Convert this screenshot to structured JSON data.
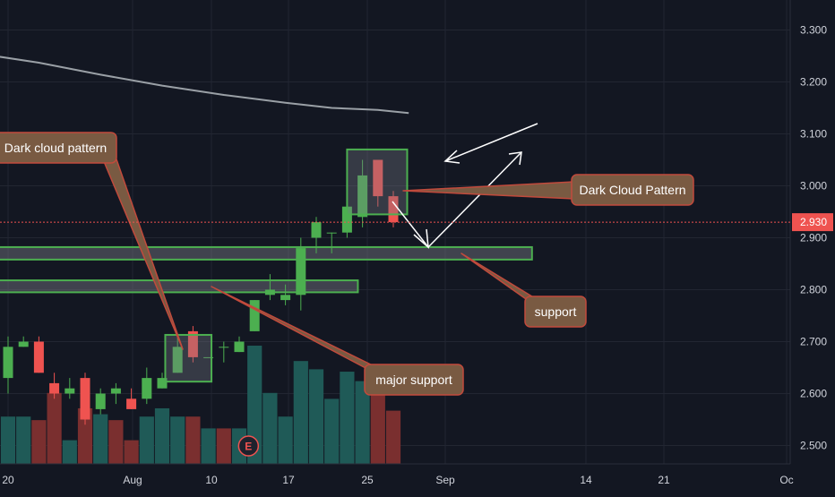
{
  "chart_data": {
    "type": "candlestick",
    "title": "",
    "xlabel": "",
    "ylabel": "",
    "ylim": [
      2.47,
      3.34
    ],
    "y_ticks": [
      "2.500",
      "2.600",
      "2.700",
      "2.800",
      "2.900",
      "3.000",
      "3.100",
      "3.200",
      "3.300"
    ],
    "x_ticks": [
      "20",
      "Aug",
      "10",
      "17",
      "25",
      "Sep",
      "14",
      "21",
      "Oc"
    ],
    "grid": true,
    "last_price": "2.930",
    "candles": [
      {
        "o": 2.63,
        "h": 2.71,
        "l": 2.6,
        "c": 2.69
      },
      {
        "o": 2.69,
        "h": 2.71,
        "l": 2.69,
        "c": 2.7
      },
      {
        "o": 2.7,
        "h": 2.71,
        "l": 2.64,
        "c": 2.64
      },
      {
        "o": 2.62,
        "h": 2.64,
        "l": 2.59,
        "c": 2.6
      },
      {
        "o": 2.6,
        "h": 2.63,
        "l": 2.59,
        "c": 2.61
      },
      {
        "o": 2.63,
        "h": 2.64,
        "l": 2.54,
        "c": 2.55
      },
      {
        "o": 2.57,
        "h": 2.61,
        "l": 2.56,
        "c": 2.6
      },
      {
        "o": 2.6,
        "h": 2.62,
        "l": 2.58,
        "c": 2.61
      },
      {
        "o": 2.59,
        "h": 2.61,
        "l": 2.57,
        "c": 2.57
      },
      {
        "o": 2.59,
        "h": 2.65,
        "l": 2.58,
        "c": 2.63
      },
      {
        "o": 2.61,
        "h": 2.64,
        "l": 2.61,
        "c": 2.63
      },
      {
        "o": 2.64,
        "h": 2.71,
        "l": 2.64,
        "c": 2.69
      },
      {
        "o": 2.72,
        "h": 2.73,
        "l": 2.66,
        "c": 2.67
      },
      {
        "o": 2.67,
        "h": 2.67,
        "l": 2.67,
        "c": 2.67
      },
      {
        "o": 2.69,
        "h": 2.7,
        "l": 2.66,
        "c": 2.69
      },
      {
        "o": 2.68,
        "h": 2.71,
        "l": 2.68,
        "c": 2.7
      },
      {
        "o": 2.72,
        "h": 2.78,
        "l": 2.72,
        "c": 2.78
      },
      {
        "o": 2.79,
        "h": 2.83,
        "l": 2.78,
        "c": 2.8
      },
      {
        "o": 2.78,
        "h": 2.81,
        "l": 2.77,
        "c": 2.79
      },
      {
        "o": 2.79,
        "h": 2.9,
        "l": 2.76,
        "c": 2.88
      },
      {
        "o": 2.9,
        "h": 2.94,
        "l": 2.87,
        "c": 2.93
      },
      {
        "o": 2.91,
        "h": 2.91,
        "l": 2.87,
        "c": 2.91
      },
      {
        "o": 2.91,
        "h": 2.96,
        "l": 2.9,
        "c": 2.96
      },
      {
        "o": 2.94,
        "h": 3.05,
        "l": 2.92,
        "c": 3.02
      },
      {
        "o": 3.05,
        "h": 3.05,
        "l": 2.96,
        "c": 2.98
      },
      {
        "o": 2.98,
        "h": 2.99,
        "l": 2.92,
        "c": 2.93
      }
    ],
    "volume": [
      {
        "v": 0.4,
        "up": true
      },
      {
        "v": 0.4,
        "up": true
      },
      {
        "v": 0.37,
        "up": false
      },
      {
        "v": 0.6,
        "up": false
      },
      {
        "v": 0.2,
        "up": true
      },
      {
        "v": 0.47,
        "up": false
      },
      {
        "v": 0.42,
        "up": true
      },
      {
        "v": 0.37,
        "up": false
      },
      {
        "v": 0.2,
        "up": false
      },
      {
        "v": 0.4,
        "up": true
      },
      {
        "v": 0.47,
        "up": true
      },
      {
        "v": 0.4,
        "up": true
      },
      {
        "v": 0.4,
        "up": false
      },
      {
        "v": 0.3,
        "up": true
      },
      {
        "v": 0.3,
        "up": false
      },
      {
        "v": 0.3,
        "up": true
      },
      {
        "v": 1.0,
        "up": true
      },
      {
        "v": 0.6,
        "up": true
      },
      {
        "v": 0.4,
        "up": true
      },
      {
        "v": 0.87,
        "up": true
      },
      {
        "v": 0.8,
        "up": true
      },
      {
        "v": 0.55,
        "up": true
      },
      {
        "v": 0.78,
        "up": true
      },
      {
        "v": 0.7,
        "up": true
      },
      {
        "v": 0.6,
        "up": false
      },
      {
        "v": 0.45,
        "up": false
      }
    ],
    "moving_average": [
      {
        "i": -2,
        "y": 3.255
      },
      {
        "i": 2,
        "y": 3.237
      },
      {
        "i": 6,
        "y": 3.214
      },
      {
        "i": 10,
        "y": 3.193
      },
      {
        "i": 14,
        "y": 3.175
      },
      {
        "i": 18,
        "y": 3.16
      },
      {
        "i": 21,
        "y": 3.15
      },
      {
        "i": 24,
        "y": 3.146
      },
      {
        "i": 26,
        "y": 3.14
      }
    ],
    "support_zones": [
      {
        "y_top": 2.882,
        "y_bottom": 2.858,
        "i_start": -2,
        "i_end": 34
      },
      {
        "y_top": 2.818,
        "y_bottom": 2.795,
        "i_start": -2,
        "i_end": 22.7
      }
    ],
    "pattern_boxes": [
      {
        "i_start": 10.2,
        "i_end": 13.2,
        "y_top": 2.713,
        "y_bottom": 2.623
      },
      {
        "i_start": 22.0,
        "i_end": 25.9,
        "y_top": 3.07,
        "y_bottom": 2.945
      }
    ],
    "annotations": [
      {
        "text": "Dark cloud pattern"
      },
      {
        "text": "Dark Cloud Pattern"
      },
      {
        "text": "support"
      },
      {
        "text": "major support"
      },
      {
        "text": "E"
      }
    ]
  },
  "colors": {
    "background": "#131722",
    "up": "#26a69a",
    "up_bright": "#4caf50",
    "down": "#ef5350",
    "volume_up": "#1f5a57",
    "volume_down": "#7a2f2f",
    "grid": "#222632",
    "axis_text": "#d1d4dc",
    "annotation_fill": "#795a42",
    "annotation_border": "#c14a3c",
    "zone_border": "#4caf50",
    "price_tag": "#ef5350"
  }
}
